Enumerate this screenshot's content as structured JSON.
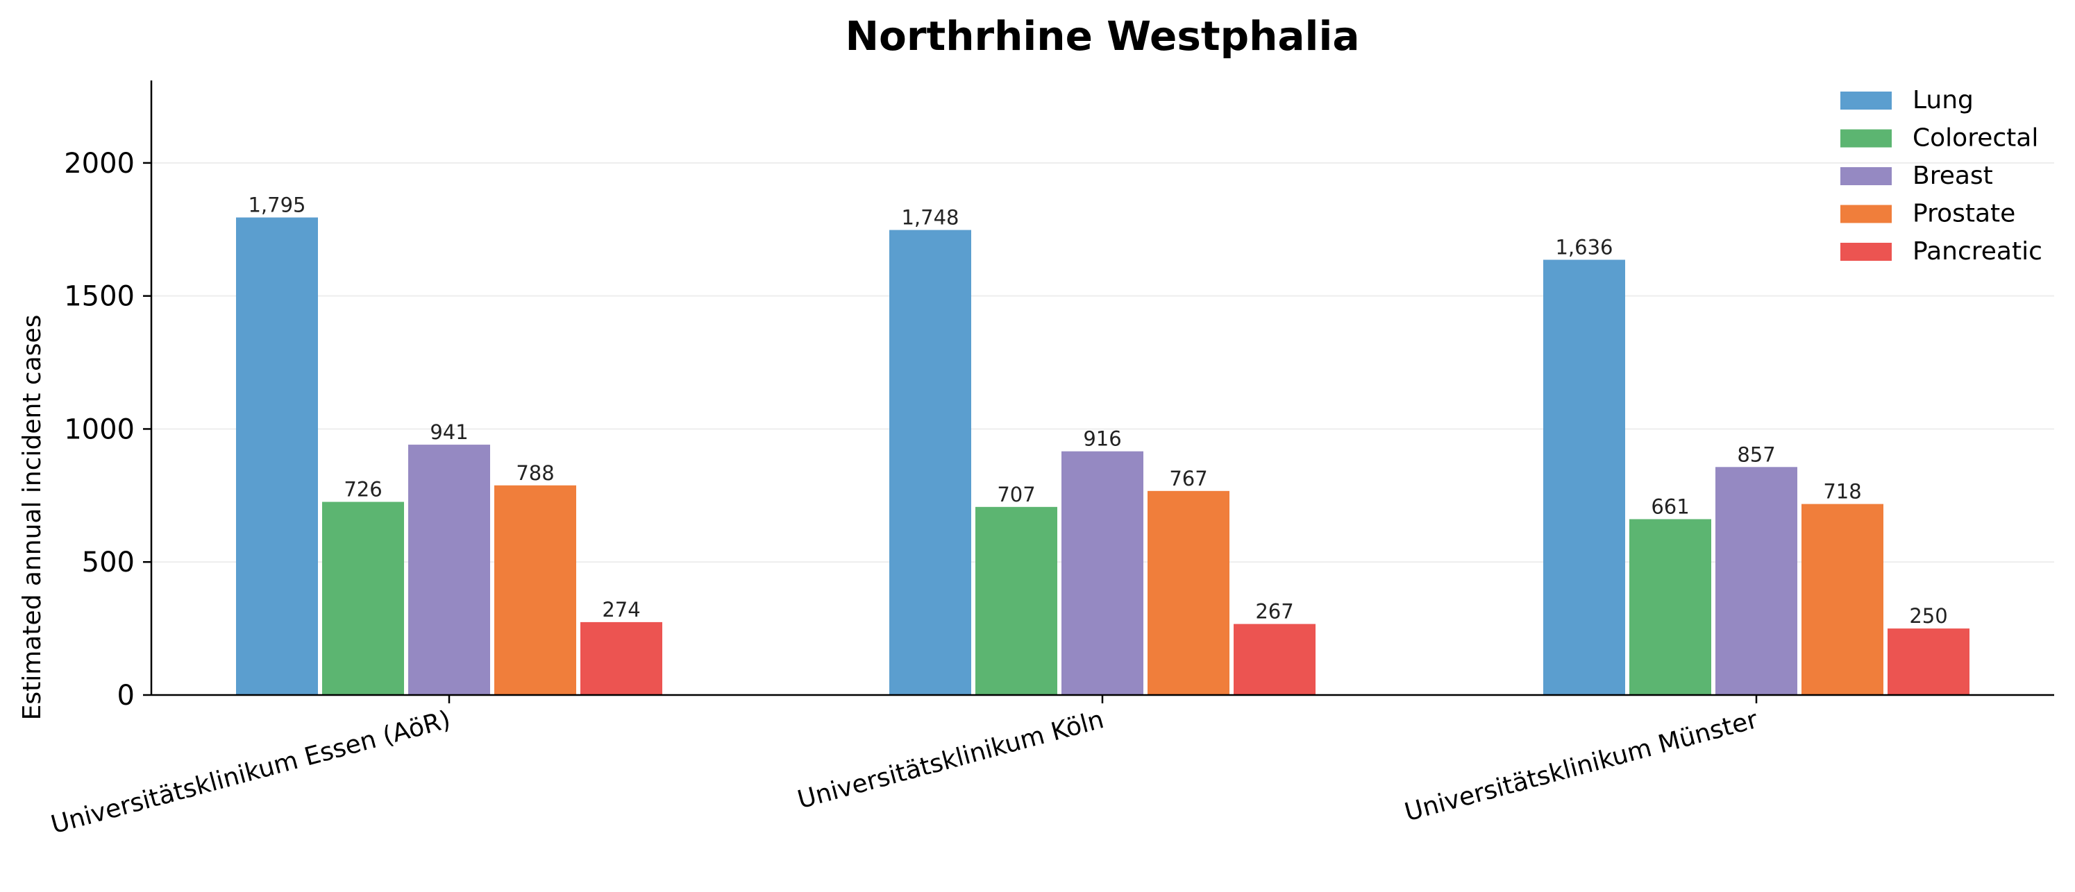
{
  "chart_data": {
    "type": "bar",
    "title": "Northrhine Westphalia",
    "xlabel": "",
    "ylabel": "Estimated annual incident cases",
    "ylim": [
      0,
      2310
    ],
    "yticks": [
      0,
      500,
      1000,
      1500,
      2000
    ],
    "grid": "horizontal, light",
    "legend_position": "top-right",
    "categories": [
      "Universitätsklinikum Essen (AöR)",
      "Universitätsklinikum Köln",
      "Universitätsklinikum Münster"
    ],
    "series": [
      {
        "name": "Lung",
        "color": "#5b9ecf",
        "values": [
          1795,
          1748,
          1636
        ],
        "labels": [
          "1,795",
          "1,748",
          "1,636"
        ]
      },
      {
        "name": "Colorectal",
        "color": "#5cb571",
        "values": [
          726,
          707,
          661
        ],
        "labels": [
          "726",
          "707",
          "661"
        ]
      },
      {
        "name": "Breast",
        "color": "#9589c2",
        "values": [
          941,
          916,
          857
        ],
        "labels": [
          "941",
          "916",
          "857"
        ]
      },
      {
        "name": "Prostate",
        "color": "#f07e3b",
        "values": [
          788,
          767,
          718
        ],
        "labels": [
          "788",
          "767",
          "718"
        ]
      },
      {
        "name": "Pancreatic",
        "color": "#ec5451",
        "values": [
          274,
          267,
          250
        ],
        "labels": [
          "274",
          "267",
          "250"
        ]
      }
    ]
  }
}
